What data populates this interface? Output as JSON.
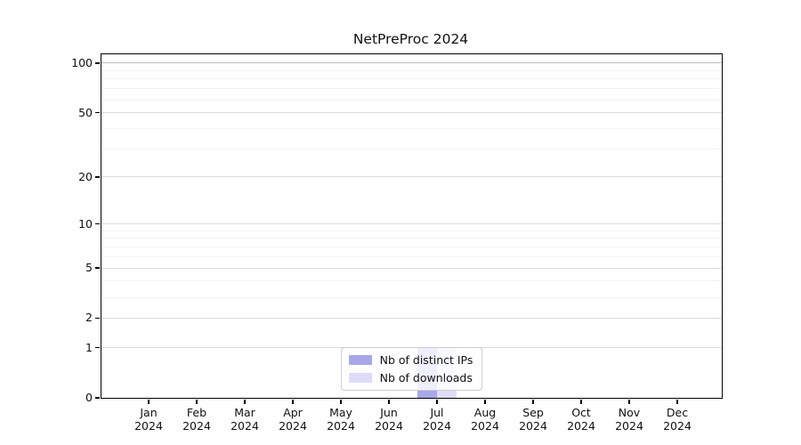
{
  "chart_data": {
    "type": "bar",
    "title": "NetPreProc 2024",
    "categories": [
      "Jan 2024",
      "Feb 2024",
      "Mar 2024",
      "Apr 2024",
      "May 2024",
      "Jun 2024",
      "Jul 2024",
      "Aug 2024",
      "Sep 2024",
      "Oct 2024",
      "Nov 2024",
      "Dec 2024"
    ],
    "series": [
      {
        "name": "Nb of distinct IPs",
        "color": "#a7a7e9",
        "values": [
          0,
          0,
          0,
          0,
          0,
          0,
          1,
          0,
          0,
          0,
          0,
          0
        ]
      },
      {
        "name": "Nb of downloads",
        "color": "#dedcf8",
        "values": [
          0,
          0,
          0,
          0,
          0,
          0,
          1,
          0,
          0,
          0,
          0,
          0
        ]
      }
    ],
    "xlabel": "",
    "ylabel": "",
    "yscale": "log1p",
    "ylim": [
      0,
      113
    ],
    "y_major_ticks": [
      0,
      1,
      2,
      5,
      10,
      20,
      50,
      100
    ],
    "y_minor_ticks": [
      3,
      4,
      6,
      7,
      8,
      9,
      30,
      40,
      60,
      70,
      80,
      90
    ],
    "grid": true,
    "legend_position": "lower center",
    "colors": {
      "axis": "#000000",
      "grid_major": "#dcdcdc",
      "grid_minor": "#f2f2f2",
      "grid_top": "#bdbdbd",
      "background": "#ffffff"
    }
  }
}
